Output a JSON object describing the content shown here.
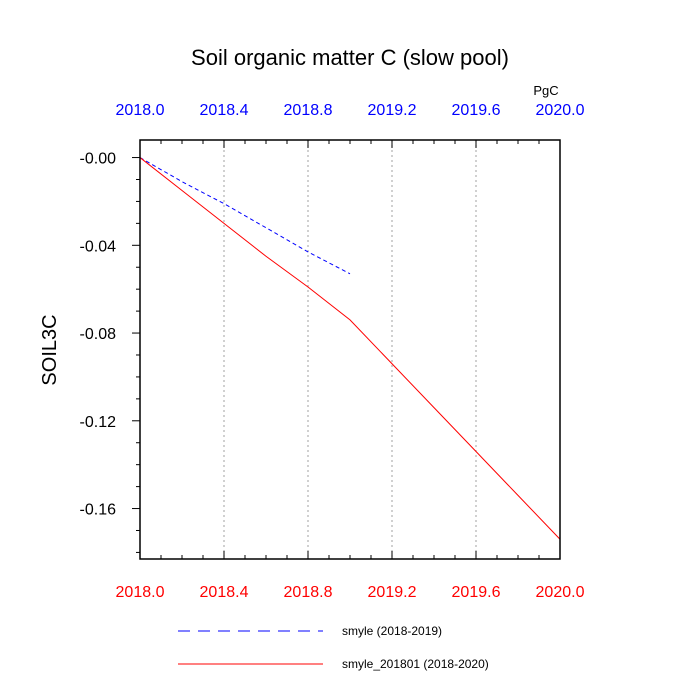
{
  "chart_data": {
    "type": "line",
    "title": "Soil organic matter C (slow pool)",
    "units": "PgC",
    "ylabel": "SOIL3C",
    "xlabel": "",
    "xlim": [
      2018.0,
      2020.0
    ],
    "ylim": [
      -0.183,
      0.008
    ],
    "x_ticks": [
      2018.0,
      2018.4,
      2018.8,
      2019.2,
      2019.6,
      2020.0
    ],
    "x_tick_labels": [
      "2018.0",
      "2018.4",
      "2018.8",
      "2019.2",
      "2019.6",
      "2020.0"
    ],
    "x_minor_ticks": [
      2018.1,
      2018.2,
      2018.3,
      2018.5,
      2018.6,
      2018.7,
      2018.9,
      2019.0,
      2019.1,
      2019.3,
      2019.4,
      2019.5,
      2019.7,
      2019.8,
      2019.9
    ],
    "y_ticks": [
      -0.16,
      -0.12,
      -0.08,
      -0.04,
      0.0
    ],
    "y_tick_labels": [
      "-0.16",
      "-0.12",
      "-0.08",
      "-0.04",
      "-0.00"
    ],
    "y_minor_ticks": [
      -0.18,
      -0.17,
      -0.15,
      -0.14,
      -0.13,
      -0.11,
      -0.1,
      -0.09,
      -0.07,
      -0.06,
      -0.05,
      -0.03,
      -0.02,
      -0.01
    ],
    "top_axis_color": "#0000ff",
    "bottom_axis_color": "#ff0000",
    "grid": "vertical dotted at major x ticks",
    "series": [
      {
        "name": "smyle (2018-2019)",
        "color": "#0000ff",
        "style": "dashed",
        "x": [
          2018.0,
          2018.2,
          2018.4,
          2018.6,
          2018.8,
          2019.0
        ],
        "y": [
          0.0,
          -0.011,
          -0.021,
          -0.032,
          -0.043,
          -0.053
        ]
      },
      {
        "name": "smyle_201801 (2018-2020)",
        "color": "#ff0000",
        "style": "solid",
        "x": [
          2018.0,
          2018.2,
          2018.4,
          2018.6,
          2018.8,
          2019.0,
          2019.2,
          2019.4,
          2019.6,
          2019.8,
          2020.0
        ],
        "y": [
          0.0,
          -0.015,
          -0.03,
          -0.045,
          -0.059,
          -0.074,
          -0.094,
          -0.114,
          -0.134,
          -0.154,
          -0.174
        ]
      }
    ],
    "legend_position": "bottom"
  }
}
